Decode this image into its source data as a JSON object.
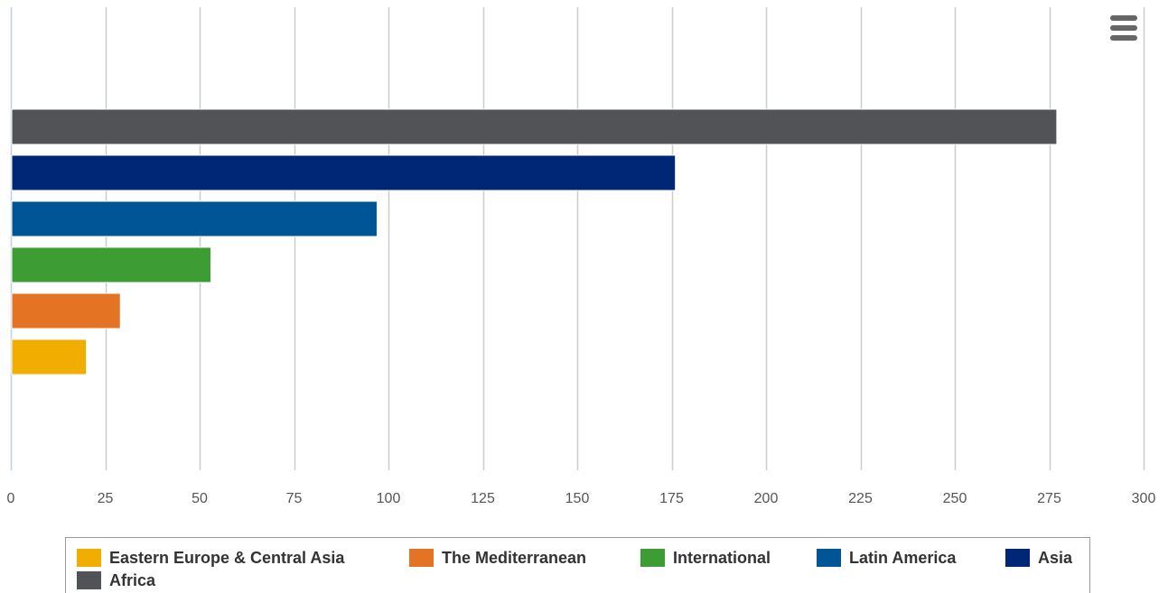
{
  "chart_data": {
    "type": "bar",
    "orientation": "horizontal",
    "series": [
      {
        "name": "Eastern Europe & Central Asia",
        "values": [
          20
        ],
        "color": "#f1ad00"
      },
      {
        "name": "The Mediterranean",
        "values": [
          29
        ],
        "color": "#e57324"
      },
      {
        "name": "International",
        "values": [
          53
        ],
        "color": "#3e9c35"
      },
      {
        "name": "Latin America",
        "values": [
          97
        ],
        "color": "#005596"
      },
      {
        "name": "Asia",
        "values": [
          176
        ],
        "color": "#002776"
      },
      {
        "name": "Africa",
        "values": [
          277
        ],
        "color": "#515356"
      }
    ],
    "x_ticks": [
      "0",
      "25",
      "50",
      "75",
      "100",
      "125",
      "150",
      "175",
      "200",
      "225",
      "250",
      "275",
      "300"
    ],
    "xlim": [
      0,
      300
    ],
    "grid": true,
    "legend_position": "bottom",
    "title": "",
    "xlabel": "",
    "ylabel": ""
  },
  "menu": {
    "icon": "hamburger-menu-icon"
  }
}
